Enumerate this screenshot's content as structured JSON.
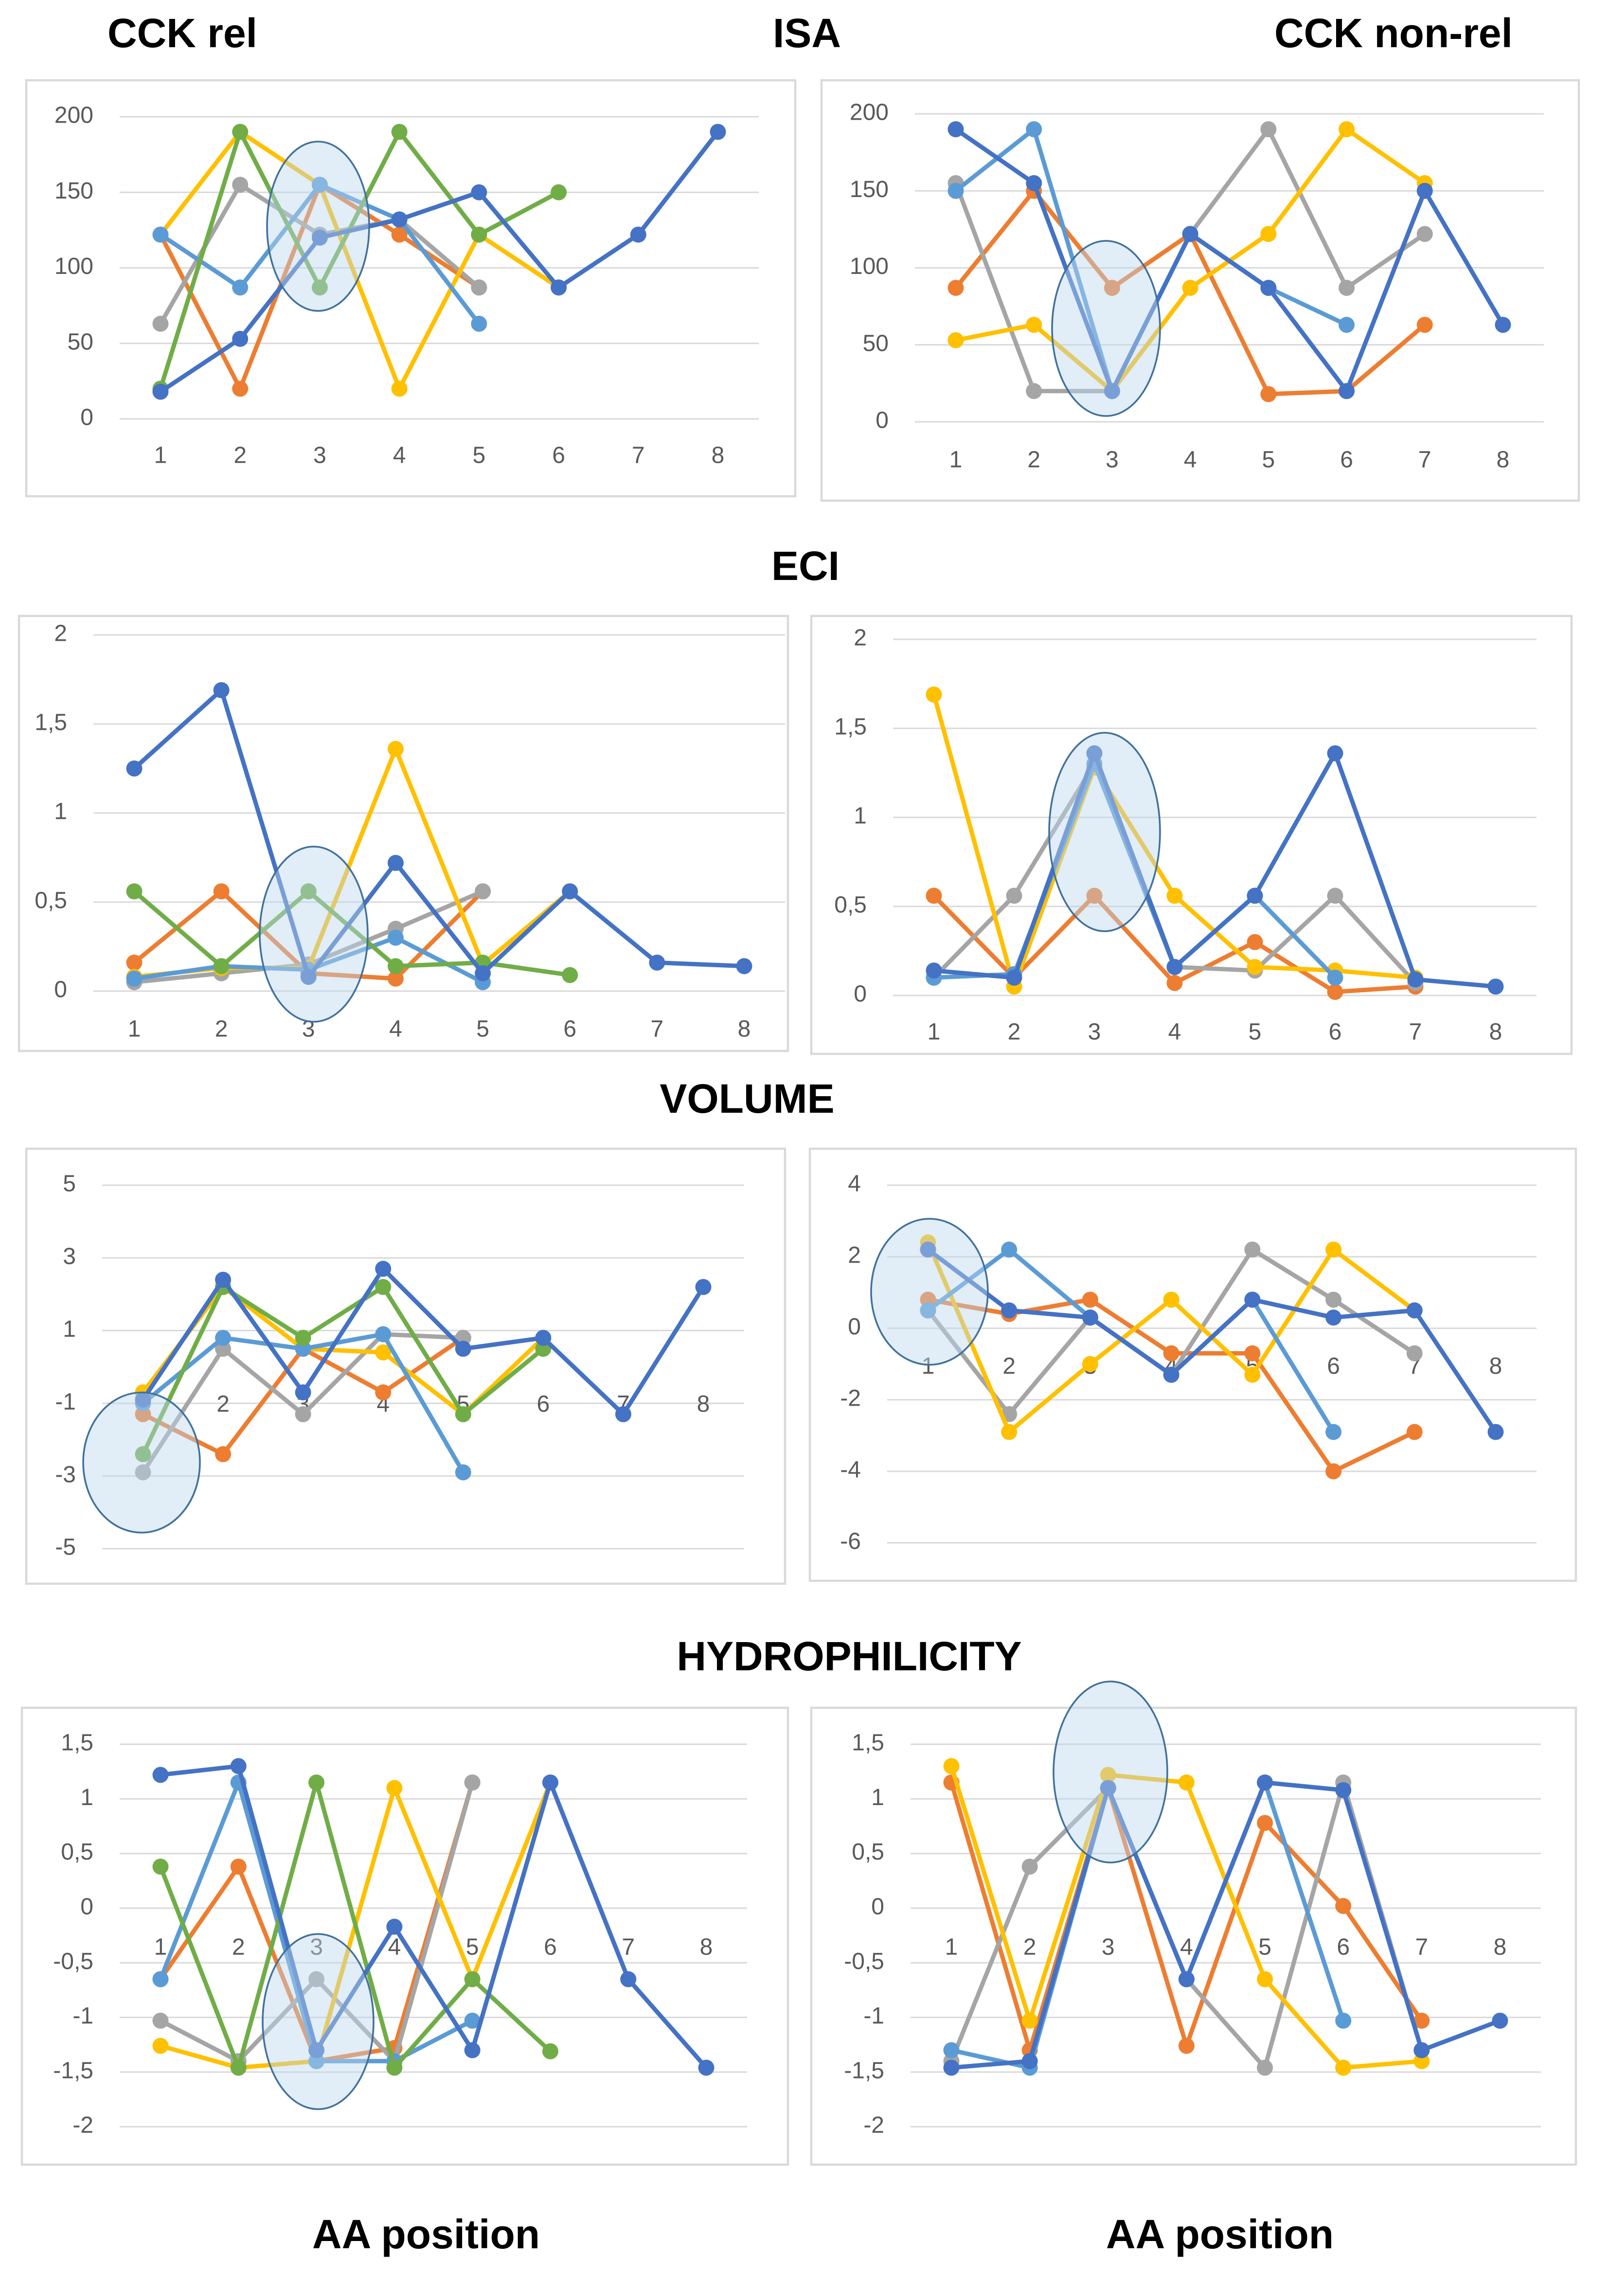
{
  "headings": [
    "CCK rel",
    "ISA",
    "CCK non-rel",
    "ECI",
    "VOLUME",
    "HYDROPHILICITY"
  ],
  "footers": [
    "AA position",
    "AA position"
  ],
  "chart_data": [
    {
      "type": "line",
      "x": [
        1,
        2,
        3,
        4,
        5,
        6,
        7,
        8
      ],
      "ylim": [
        0,
        200
      ],
      "yticks": [
        0,
        50,
        100,
        150,
        200
      ],
      "grid": true,
      "series": [
        {
          "color": "#ed7d31",
          "values": [
            122,
            20,
            155,
            122,
            87,
            null,
            null,
            null
          ]
        },
        {
          "color": "#a5a5a5",
          "values": [
            63,
            155,
            122,
            132,
            87,
            null,
            null,
            null
          ]
        },
        {
          "color": "#ffc000",
          "values": [
            122,
            190,
            155,
            20,
            122,
            87,
            null,
            null
          ]
        },
        {
          "color": "#5b9bd5",
          "values": [
            122,
            87,
            155,
            132,
            63,
            null,
            null,
            null
          ]
        },
        {
          "color": "#70ad47",
          "values": [
            20,
            190,
            87,
            190,
            122,
            150,
            null,
            null
          ]
        },
        {
          "color": "#4472c4",
          "values": [
            18,
            53,
            120,
            132,
            150,
            87,
            122,
            190
          ]
        }
      ]
    },
    {
      "type": "line",
      "x": [
        1,
        2,
        3,
        4,
        5,
        6,
        7,
        8
      ],
      "ylim": [
        0,
        200
      ],
      "yticks": [
        0,
        50,
        100,
        150,
        200
      ],
      "grid": true,
      "series": [
        {
          "color": "#ed7d31",
          "values": [
            87,
            150,
            87,
            122,
            18,
            20,
            63,
            null
          ]
        },
        {
          "color": "#a5a5a5",
          "values": [
            155,
            20,
            20,
            122,
            190,
            87,
            122,
            null
          ]
        },
        {
          "color": "#ffc000",
          "values": [
            53,
            63,
            20,
            87,
            122,
            190,
            155,
            null
          ]
        },
        {
          "color": "#5b9bd5",
          "values": [
            150,
            190,
            20,
            122,
            87,
            63,
            null,
            null
          ]
        },
        {
          "color": "#4472c4",
          "values": [
            190,
            155,
            20,
            122,
            87,
            20,
            150,
            63
          ]
        }
      ]
    },
    {
      "type": "line",
      "x": [
        1,
        2,
        3,
        4,
        5,
        6,
        7,
        8
      ],
      "ylim": [
        0,
        2
      ],
      "yticks": [
        0,
        {
          "value": 0.5,
          "label": "0,5"
        },
        1,
        {
          "value": 1.5,
          "label": "1,5"
        },
        2
      ],
      "grid": true,
      "series": [
        {
          "color": "#ed7d31",
          "values": [
            0.16,
            0.56,
            0.1,
            0.07,
            0.56,
            null,
            null,
            null
          ]
        },
        {
          "color": "#a5a5a5",
          "values": [
            0.05,
            0.1,
            0.15,
            0.35,
            0.56,
            null,
            null,
            null
          ]
        },
        {
          "color": "#ffc000",
          "values": [
            0.08,
            0.13,
            0.13,
            1.36,
            0.15,
            0.56,
            null,
            null
          ]
        },
        {
          "color": "#5b9bd5",
          "values": [
            0.07,
            0.14,
            0.12,
            0.3,
            0.05,
            null,
            null,
            null
          ]
        },
        {
          "color": "#70ad47",
          "values": [
            0.56,
            0.14,
            0.56,
            0.14,
            0.16,
            0.09,
            null,
            null
          ]
        },
        {
          "color": "#4472c4",
          "values": [
            1.25,
            1.69,
            0.08,
            0.72,
            0.1,
            0.56,
            0.16,
            0.14
          ]
        }
      ]
    },
    {
      "type": "line",
      "x": [
        1,
        2,
        3,
        4,
        5,
        6,
        7,
        8
      ],
      "ylim": [
        0,
        2
      ],
      "yticks": [
        0,
        {
          "value": 0.5,
          "label": "0,5"
        },
        1,
        {
          "value": 1.5,
          "label": "1,5"
        },
        2
      ],
      "grid": true,
      "series": [
        {
          "color": "#ed7d31",
          "values": [
            0.56,
            0.1,
            0.56,
            0.07,
            0.3,
            0.02,
            0.05,
            null
          ]
        },
        {
          "color": "#a5a5a5",
          "values": [
            0.1,
            0.56,
            1.3,
            0.16,
            0.14,
            0.56,
            0.07,
            null
          ]
        },
        {
          "color": "#ffc000",
          "values": [
            1.69,
            0.05,
            1.28,
            0.56,
            0.16,
            0.14,
            0.1,
            null
          ]
        },
        {
          "color": "#5b9bd5",
          "values": [
            0.1,
            0.12,
            1.3,
            0.16,
            0.56,
            0.1,
            null,
            null
          ]
        },
        {
          "color": "#4472c4",
          "values": [
            0.14,
            0.1,
            1.36,
            0.16,
            0.56,
            1.36,
            0.09,
            0.05
          ]
        }
      ]
    },
    {
      "type": "line",
      "x": [
        1,
        2,
        3,
        4,
        5,
        6,
        7,
        8
      ],
      "ylim": [
        -5,
        5
      ],
      "yticks": [
        -5,
        -3,
        -1,
        1,
        3,
        5
      ],
      "grid": true,
      "series": [
        {
          "color": "#ed7d31",
          "values": [
            -1.3,
            -2.4,
            0.5,
            -0.7,
            0.8,
            null,
            null,
            null
          ]
        },
        {
          "color": "#a5a5a5",
          "values": [
            -2.9,
            0.5,
            -1.3,
            0.9,
            0.8,
            null,
            null,
            null
          ]
        },
        {
          "color": "#ffc000",
          "values": [
            -0.7,
            2.2,
            0.5,
            0.4,
            -1.3,
            0.8,
            null,
            null
          ]
        },
        {
          "color": "#5b9bd5",
          "values": [
            -1,
            0.8,
            0.5,
            0.9,
            -2.9,
            null,
            null,
            null
          ]
        },
        {
          "color": "#70ad47",
          "values": [
            -2.4,
            2.2,
            0.8,
            2.2,
            -1.3,
            0.5,
            null,
            null
          ]
        },
        {
          "color": "#4472c4",
          "values": [
            -0.9,
            2.4,
            -0.7,
            2.7,
            0.5,
            0.8,
            -1.3,
            2.2
          ]
        }
      ]
    },
    {
      "type": "line",
      "x": [
        1,
        2,
        3,
        4,
        5,
        6,
        7,
        8
      ],
      "ylim": [
        -6,
        4
      ],
      "yticks": [
        -6,
        -4,
        -2,
        0,
        2,
        4
      ],
      "grid": true,
      "series": [
        {
          "color": "#ed7d31",
          "values": [
            0.8,
            0.4,
            0.8,
            -0.7,
            -0.7,
            -4,
            -2.9,
            null
          ]
        },
        {
          "color": "#a5a5a5",
          "values": [
            0.5,
            -2.4,
            0.3,
            -1.3,
            2.2,
            0.8,
            -0.7,
            null
          ]
        },
        {
          "color": "#ffc000",
          "values": [
            2.4,
            -2.9,
            -1,
            0.8,
            -1.3,
            2.2,
            0.5,
            null
          ]
        },
        {
          "color": "#5b9bd5",
          "values": [
            0.5,
            2.2,
            0.3,
            -1.3,
            0.8,
            -2.9,
            null,
            null
          ]
        },
        {
          "color": "#4472c4",
          "values": [
            2.2,
            0.5,
            0.3,
            -1.3,
            0.8,
            0.3,
            0.5,
            -2.9
          ]
        }
      ]
    },
    {
      "type": "line",
      "x": [
        1,
        2,
        3,
        4,
        5,
        6,
        7,
        8
      ],
      "ylim": [
        -2,
        1.5
      ],
      "yticks": [
        -2,
        {
          "value": -1.5,
          "label": "-1,5"
        },
        -1,
        {
          "value": -0.5,
          "label": "-0,5"
        },
        0,
        {
          "value": 0.5,
          "label": "0,5"
        },
        1,
        {
          "value": 1.5,
          "label": "1,5"
        }
      ],
      "grid": true,
      "series": [
        {
          "color": "#ed7d31",
          "values": [
            -0.65,
            0.38,
            -1.4,
            -1.28,
            1.15,
            null,
            null,
            null
          ]
        },
        {
          "color": "#a5a5a5",
          "values": [
            -1.03,
            -1.4,
            -0.65,
            -1.4,
            1.15,
            null,
            null,
            null
          ]
        },
        {
          "color": "#ffc000",
          "values": [
            -1.26,
            -1.46,
            -1.4,
            1.1,
            -0.65,
            1.15,
            null,
            null
          ]
        },
        {
          "color": "#5b9bd5",
          "values": [
            -0.65,
            1.15,
            -1.4,
            -1.4,
            -1.03,
            null,
            null,
            null
          ]
        },
        {
          "color": "#70ad47",
          "values": [
            0.38,
            -1.46,
            1.15,
            -1.46,
            -0.65,
            -1.31,
            null,
            null
          ]
        },
        {
          "color": "#4472c4",
          "values": [
            1.22,
            1.3,
            -1.3,
            -0.17,
            -1.3,
            1.15,
            -0.65,
            -1.46
          ]
        }
      ]
    },
    {
      "type": "line",
      "x": [
        1,
        2,
        3,
        4,
        5,
        6,
        7,
        8
      ],
      "ylim": [
        -2,
        1.5
      ],
      "yticks": [
        -2,
        {
          "value": -1.5,
          "label": "-1,5"
        },
        -1,
        {
          "value": -0.5,
          "label": "-0,5"
        },
        0,
        {
          "value": 0.5,
          "label": "0,5"
        },
        1,
        {
          "value": 1.5,
          "label": "1,5"
        }
      ],
      "grid": true,
      "series": [
        {
          "color": "#ed7d31",
          "values": [
            1.15,
            -1.3,
            1.1,
            -1.26,
            0.78,
            0.02,
            -1.03,
            null
          ]
        },
        {
          "color": "#a5a5a5",
          "values": [
            -1.4,
            0.38,
            1.1,
            -0.65,
            -1.46,
            1.15,
            -1.3,
            null
          ]
        },
        {
          "color": "#ffc000",
          "values": [
            1.3,
            -1.03,
            1.22,
            1.15,
            -0.65,
            -1.46,
            -1.4,
            null
          ]
        },
        {
          "color": "#5b9bd5",
          "values": [
            -1.3,
            -1.46,
            1.1,
            -0.65,
            1.15,
            -1.03,
            null,
            null
          ]
        },
        {
          "color": "#4472c4",
          "values": [
            -1.46,
            -1.4,
            1.1,
            -0.65,
            1.15,
            1.08,
            -1.3,
            -1.03
          ]
        }
      ]
    }
  ]
}
